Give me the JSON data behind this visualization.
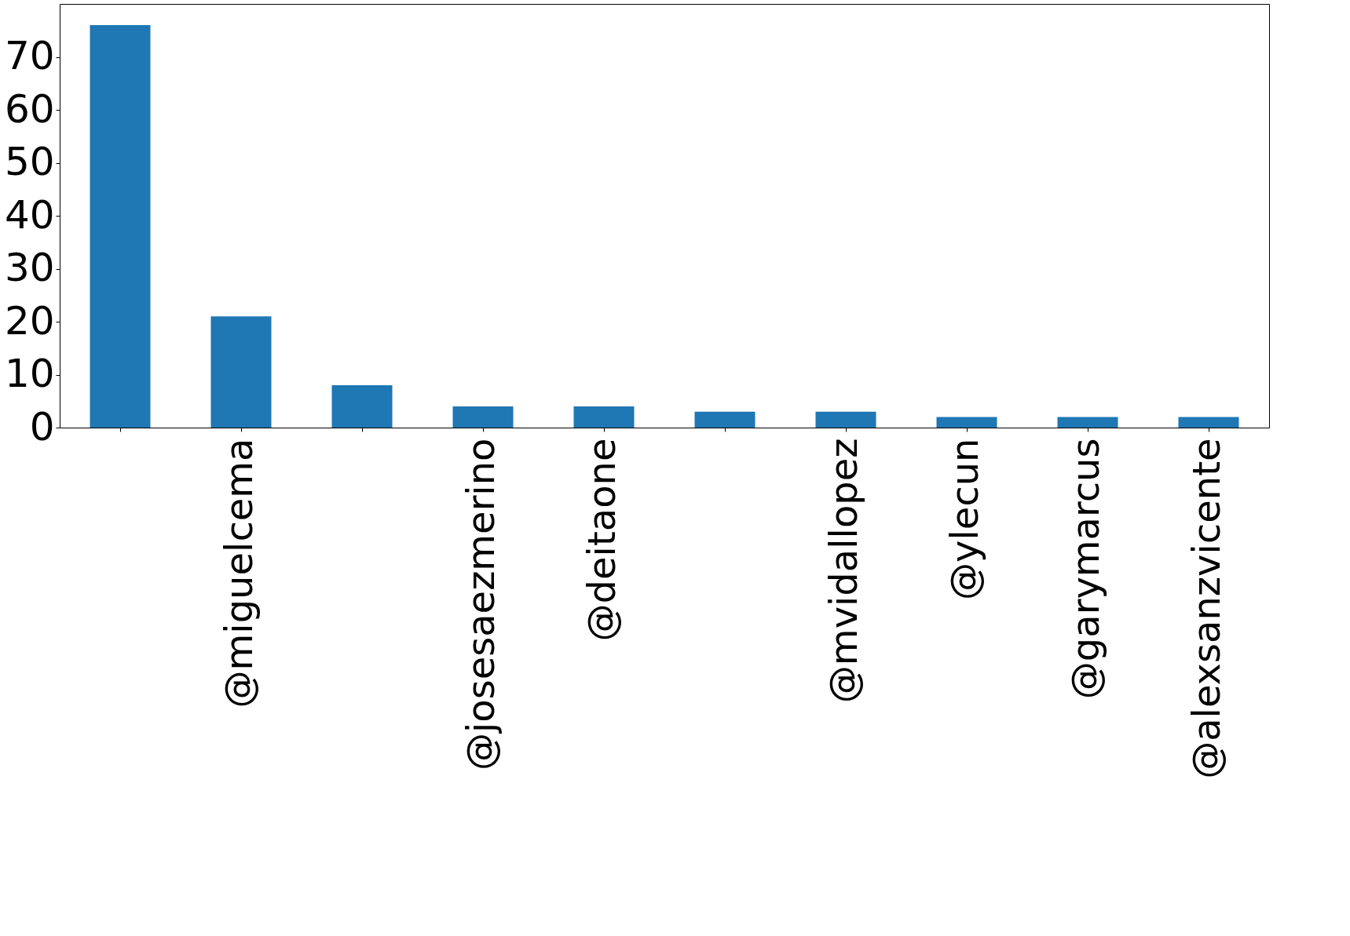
{
  "chart_data": {
    "type": "bar",
    "categories": [
      null,
      "@miguelcema",
      null,
      "@josesaezmerino",
      "@deitaone",
      null,
      "@mvidallopez",
      "@ylecun",
      "@garymarcus",
      "@alexsanzvicente"
    ],
    "values": [
      76,
      21,
      8,
      4,
      4,
      3,
      3,
      2,
      2,
      2
    ],
    "color": "#1f77b4",
    "ylim": [
      0,
      80
    ],
    "yticks": [
      0,
      10,
      20,
      30,
      40,
      50,
      60,
      70
    ],
    "grid": false
  }
}
